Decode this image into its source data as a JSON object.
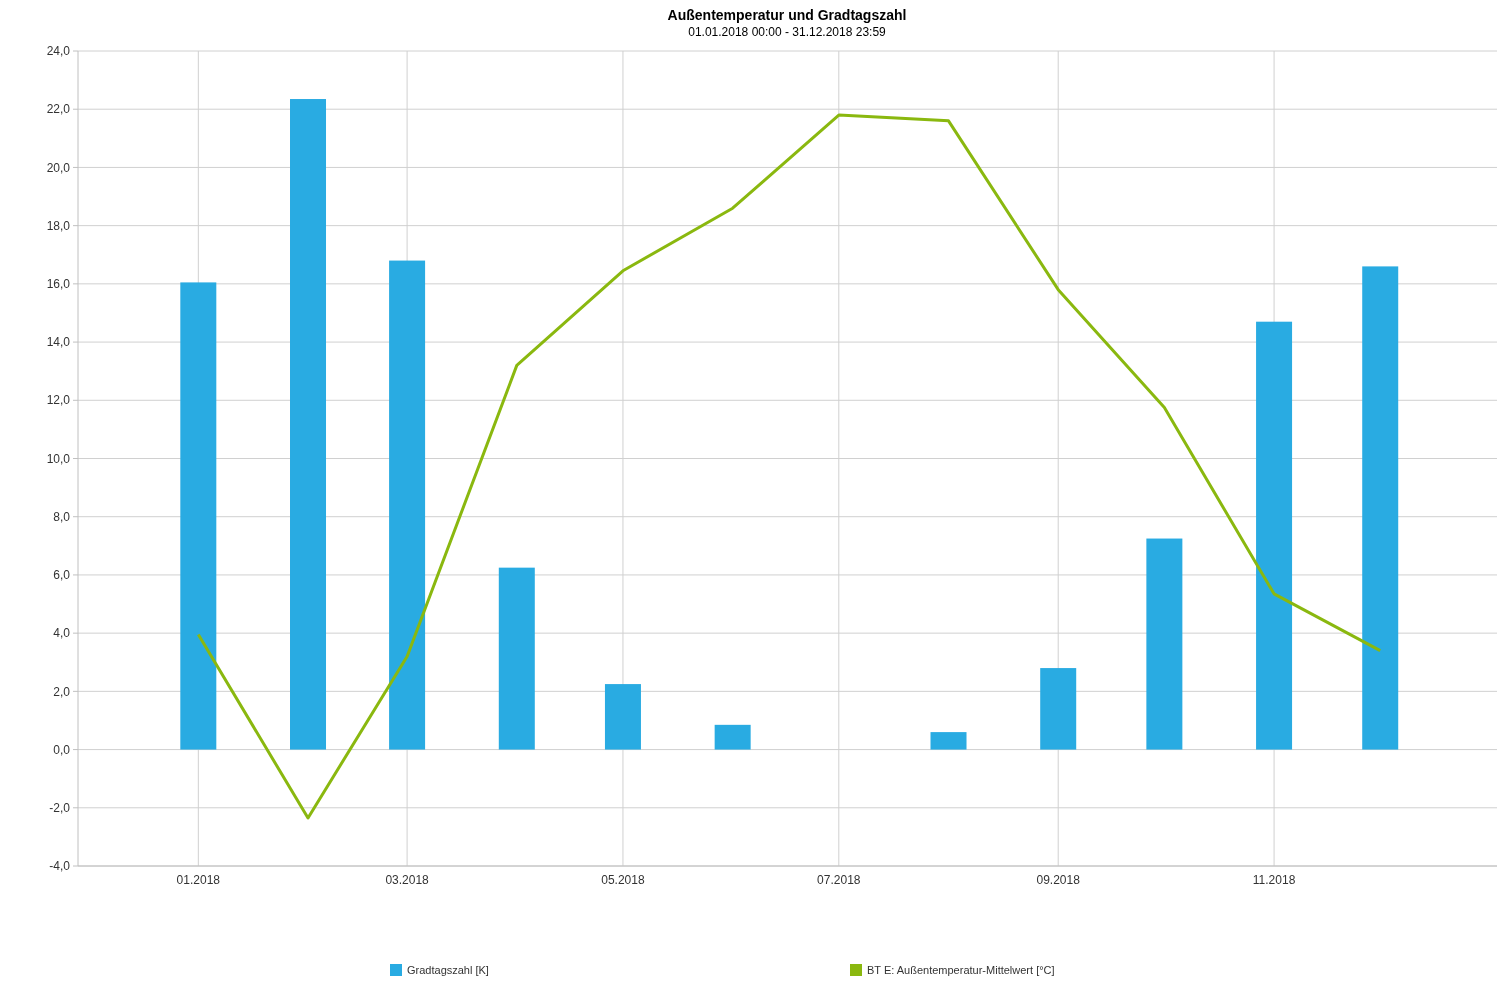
{
  "chart_data": {
    "type": "bar",
    "title": "Außentemperatur und Gradtagszahl",
    "subtitle": "01.01.2018 00:00 - 31.12.2018 23:59",
    "x": [
      "2018-01",
      "2018-02",
      "2018-03",
      "2018-04",
      "2018-05",
      "2018-06",
      "2018-07",
      "2018-08",
      "2018-09",
      "2018-10",
      "2018-11",
      "2018-12"
    ],
    "series": [
      {
        "name": "Gradtagszahl [K]",
        "color": "#29abe2",
        "values": [
          16.05,
          22.35,
          16.8,
          6.25,
          2.25,
          0.85,
          0,
          0.6,
          2.8,
          7.25,
          14.7,
          16.6
        ]
      },
      {
        "name": "BT E: Außentemperatur-Mittelwert [°C]",
        "type": "line",
        "color": "#8ab80f",
        "values": [
          3.95,
          -2.35,
          3.2,
          13.2,
          16.45,
          18.6,
          21.8,
          21.6,
          15.8,
          11.75,
          5.35,
          3.4
        ]
      }
    ],
    "xlim": [
      "2017-11-28",
      "2019-01-03"
    ],
    "xticks": [
      {
        "value": "2018-01",
        "label": "01.2018"
      },
      {
        "value": "2018-03",
        "label": "03.2018"
      },
      {
        "value": "2018-05",
        "label": "05.2018"
      },
      {
        "value": "2018-07",
        "label": "07.2018"
      },
      {
        "value": "2018-09",
        "label": "09.2018"
      },
      {
        "value": "2018-11",
        "label": "11.2018"
      }
    ],
    "ylim": [
      -4,
      24
    ],
    "yticks": [
      {
        "value": -4,
        "label": "-4,0"
      },
      {
        "value": -2,
        "label": "-2,0"
      },
      {
        "value": 0,
        "label": "0,0"
      },
      {
        "value": 2,
        "label": "2,0"
      },
      {
        "value": 4,
        "label": "4,0"
      },
      {
        "value": 6,
        "label": "6,0"
      },
      {
        "value": 8,
        "label": "8,0"
      },
      {
        "value": 10,
        "label": "10,0"
      },
      {
        "value": 12,
        "label": "12,0"
      },
      {
        "value": 14,
        "label": "14,0"
      },
      {
        "value": 16,
        "label": "16,0"
      },
      {
        "value": 18,
        "label": "18,0"
      },
      {
        "value": 20,
        "label": "20,0"
      },
      {
        "value": 22,
        "label": "22,0"
      },
      {
        "value": 24,
        "label": "24,0"
      }
    ],
    "grid": true,
    "legend": "bottom",
    "marker": "none",
    "line_style": "solid"
  }
}
